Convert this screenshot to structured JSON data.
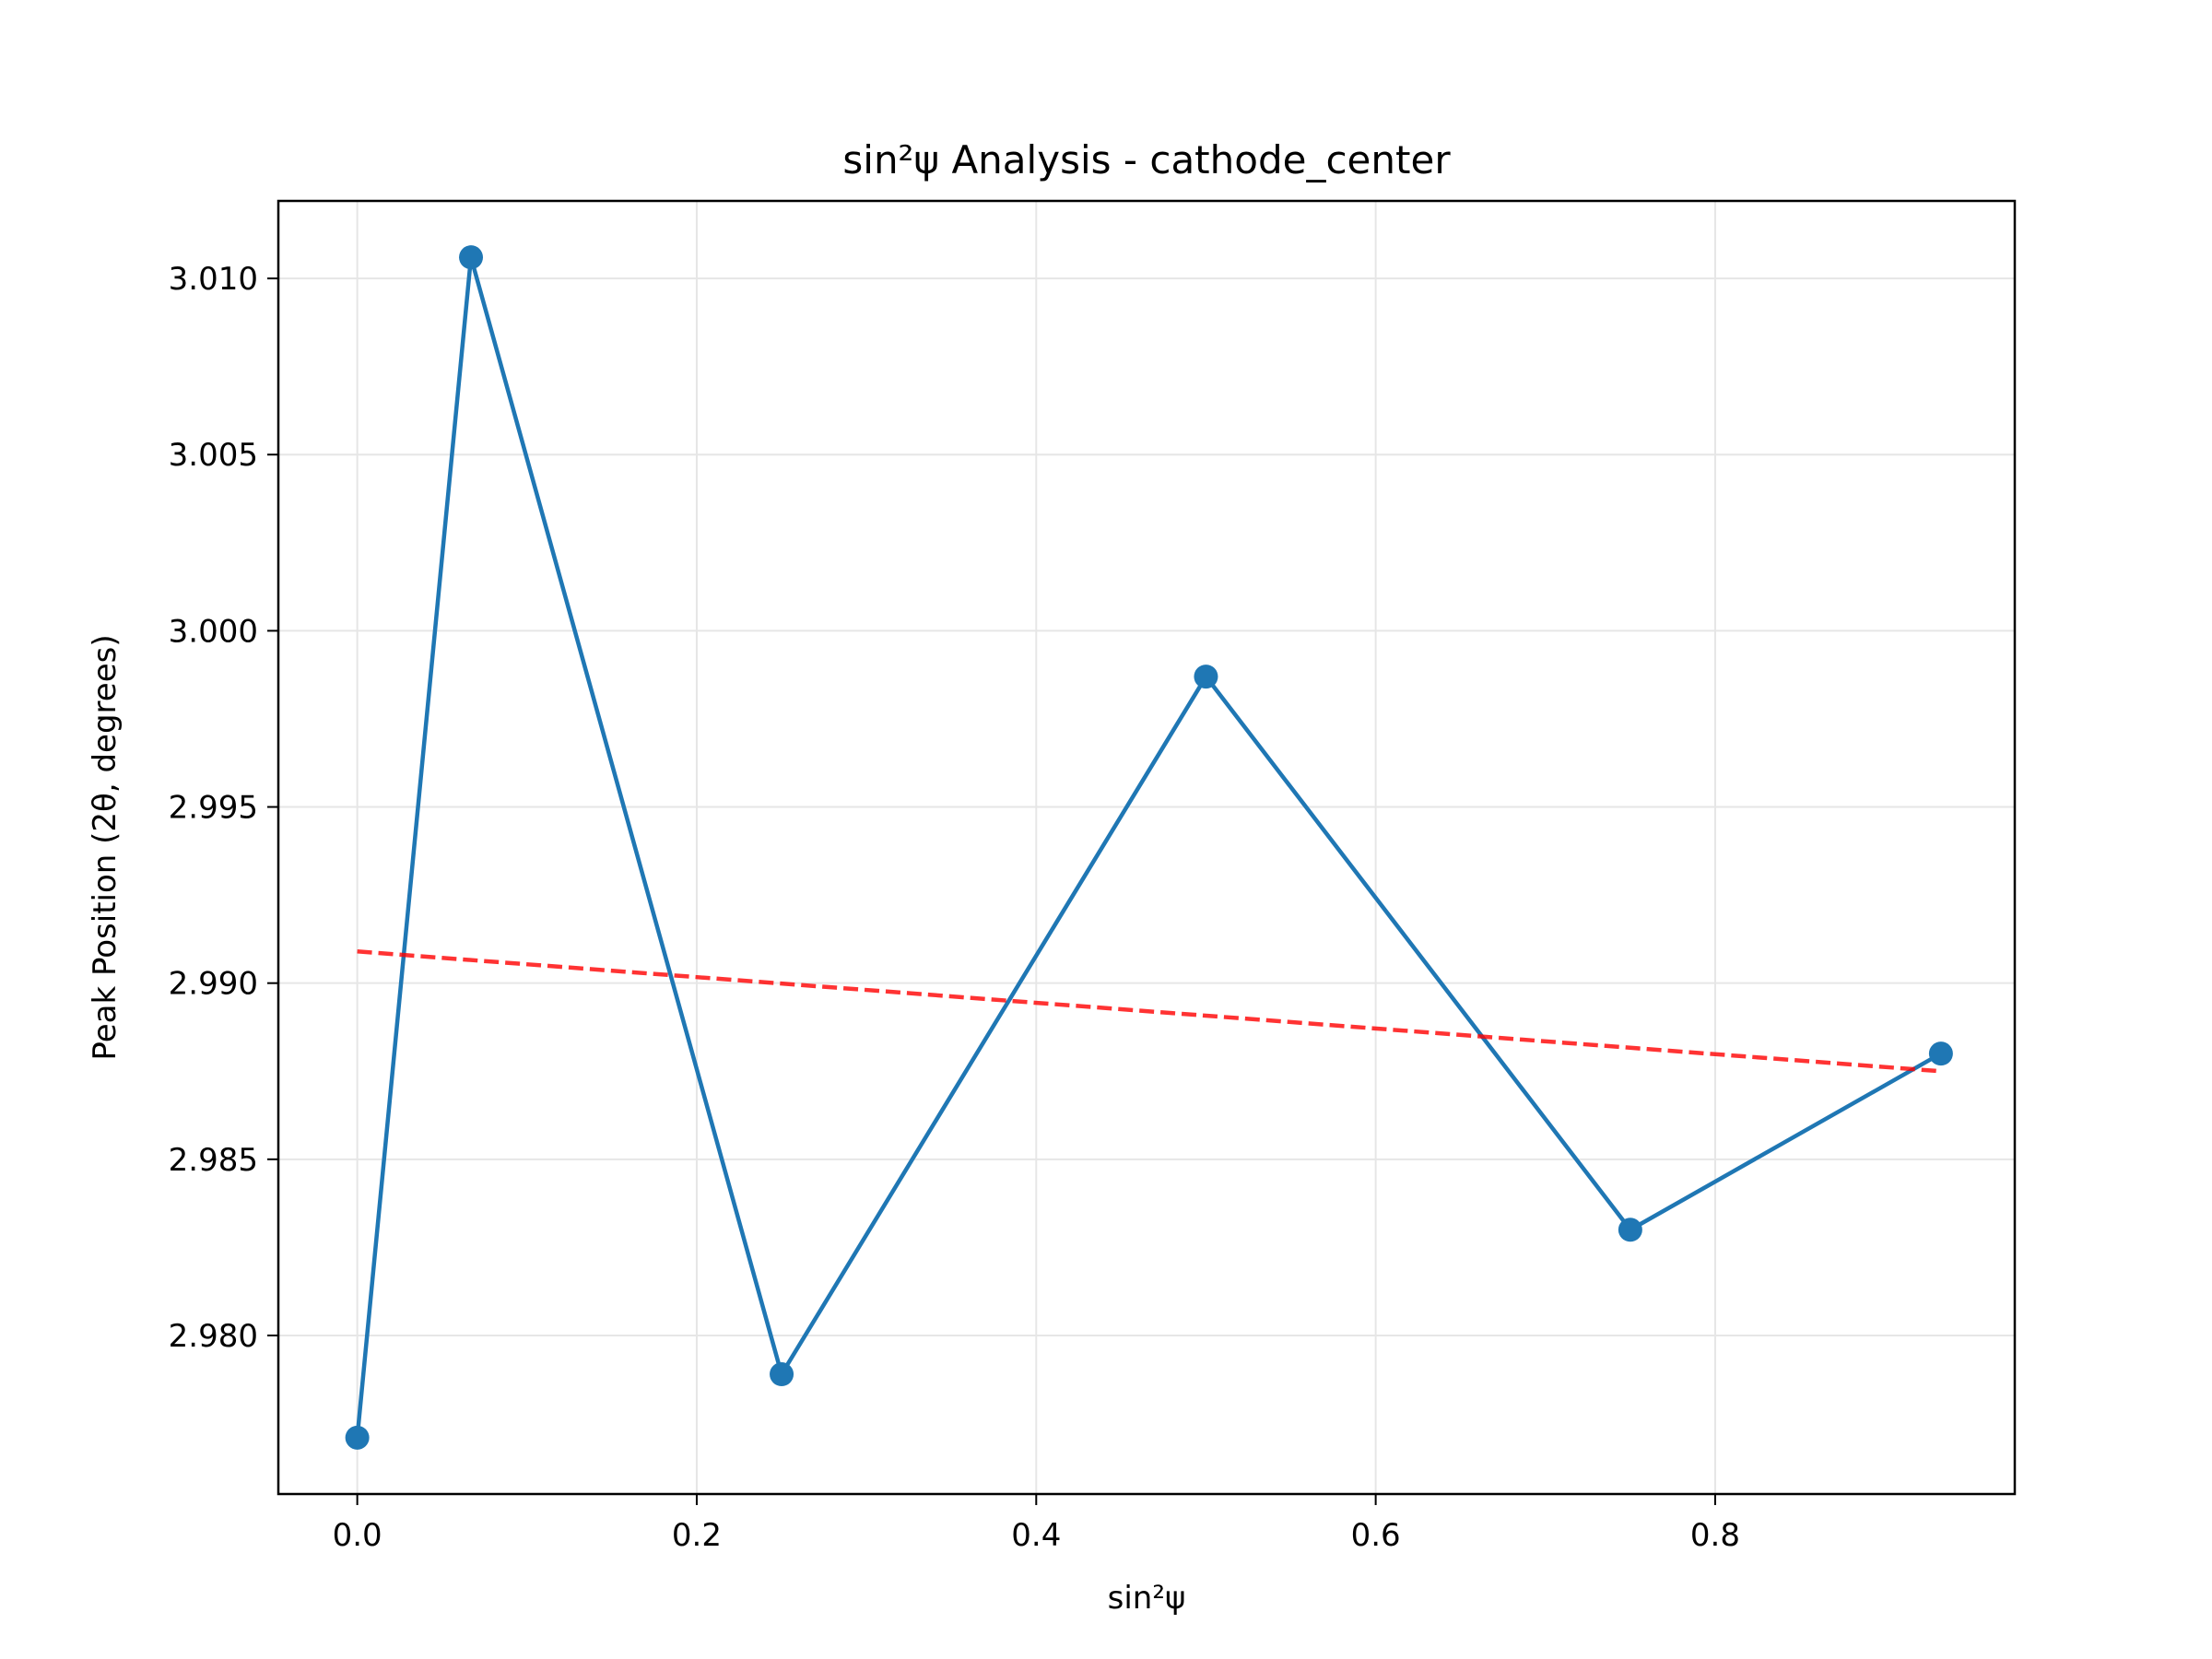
{
  "chart_data": {
    "type": "line",
    "title": "sin²ψ Analysis - cathode_center",
    "xlabel": "sin²ψ",
    "ylabel": "Peak Position (2θ, degrees)",
    "xlim": [
      -0.0465,
      0.9765
    ],
    "ylim": [
      2.9755,
      3.0122
    ],
    "x_ticks": [
      0.0,
      0.2,
      0.4,
      0.6,
      0.8
    ],
    "x_tick_labels": [
      "0.0",
      "0.2",
      "0.4",
      "0.6",
      "0.8"
    ],
    "y_ticks": [
      2.98,
      2.985,
      2.99,
      2.995,
      3.0,
      3.005,
      3.01
    ],
    "y_tick_labels": [
      "2.980",
      "2.985",
      "2.990",
      "2.995",
      "3.000",
      "3.005",
      "3.010"
    ],
    "grid": true,
    "series": [
      {
        "kind": "data",
        "x": [
          0.0,
          0.067,
          0.25,
          0.5,
          0.75,
          0.933
        ],
        "y": [
          2.9771,
          3.0106,
          2.9789,
          2.9987,
          2.983,
          2.988
        ],
        "color": "#1f77b4",
        "marker": "circle",
        "line_style": "solid"
      },
      {
        "kind": "linear-fit",
        "x": [
          0.0,
          0.933
        ],
        "y": [
          2.9909,
          2.9875
        ],
        "color": "#ff0000",
        "line_style": "dashed"
      }
    ]
  }
}
